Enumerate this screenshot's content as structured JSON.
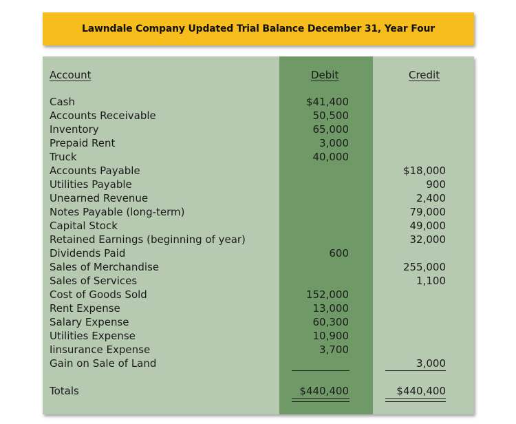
{
  "title": "Lawndale Company Updated Trial Balance December 31, Year Four",
  "headers": {
    "account": "Account",
    "debit": "Debit",
    "credit": "Credit"
  },
  "rows": [
    {
      "account": "Cash",
      "debit": "$41,400",
      "credit": ""
    },
    {
      "account": "Accounts Receivable",
      "debit": "50,500",
      "credit": ""
    },
    {
      "account": "Inventory",
      "debit": "65,000",
      "credit": ""
    },
    {
      "account": "Prepaid Rent",
      "debit": "3,000",
      "credit": ""
    },
    {
      "account": "Truck",
      "debit": "40,000",
      "credit": ""
    },
    {
      "account": "Accounts Payable",
      "debit": "",
      "credit": "$18,000"
    },
    {
      "account": "Utilities Payable",
      "debit": "",
      "credit": "900"
    },
    {
      "account": "Unearned Revenue",
      "debit": "",
      "credit": "2,400"
    },
    {
      "account": "Notes Payable (long-term)",
      "debit": "",
      "credit": "79,000"
    },
    {
      "account": "Capital Stock",
      "debit": "",
      "credit": "49,000"
    },
    {
      "account": "Retained Earnings (beginning of year)",
      "debit": "",
      "credit": "32,000"
    },
    {
      "account": "Dividends Paid",
      "debit": "600",
      "credit": ""
    },
    {
      "account": "Sales of Merchandise",
      "debit": "",
      "credit": "255,000"
    },
    {
      "account": "Sales of Services",
      "debit": "",
      "credit": "1,100"
    },
    {
      "account": "Cost of Goods Sold",
      "debit": "152,000",
      "credit": ""
    },
    {
      "account": "Rent Expense",
      "debit": "13,000",
      "credit": ""
    },
    {
      "account": "Salary Expense",
      "debit": "60,300",
      "credit": ""
    },
    {
      "account": "Utilities Expense",
      "debit": "10,900",
      "credit": ""
    },
    {
      "account": "Iinsurance Expense",
      "debit": "3,700",
      "credit": ""
    },
    {
      "account": "Gain on Sale of Land",
      "debit": "",
      "credit": "3,000"
    }
  ],
  "totals": {
    "label": "Totals",
    "debit": "$440,400",
    "credit": "$440,400"
  },
  "colors": {
    "banner": "#f7bd1c",
    "panel": "#b6c9b1",
    "debit_column": "#6f9a67"
  }
}
